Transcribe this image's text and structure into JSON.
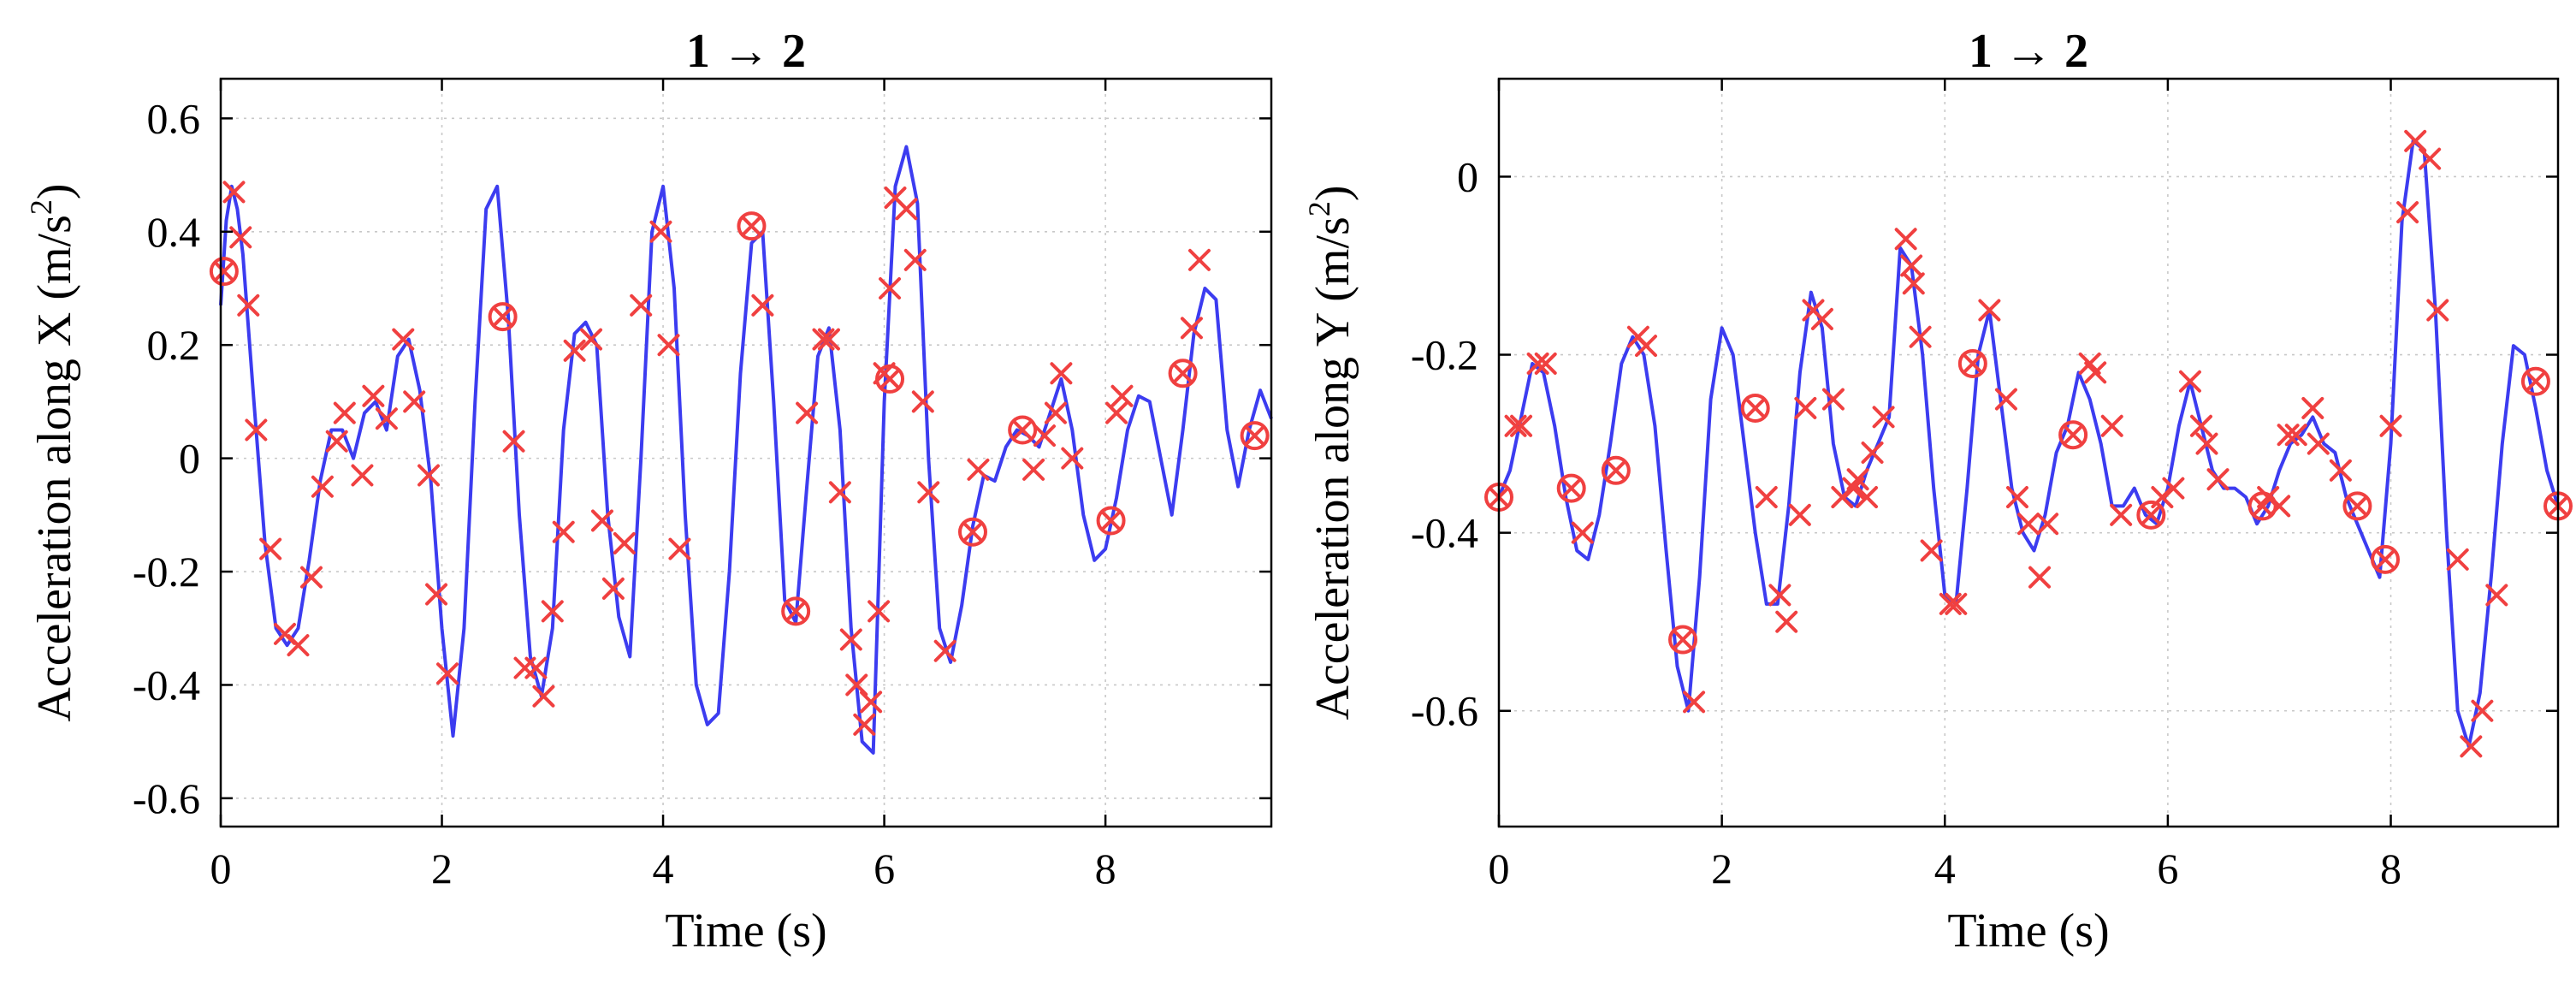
{
  "chart_data": [
    {
      "type": "line",
      "title": "1 → 2",
      "xlabel": "Time (s)",
      "ylabel": "Acceleration along X (m/s",
      "ylabel_sup": "2",
      "ylabel_close": ")",
      "xlim": [
        0,
        9.5
      ],
      "ylim": [
        -0.65,
        0.67
      ],
      "xticks": [
        0,
        2,
        4,
        6,
        8
      ],
      "xtick_labels": [
        "0",
        "2",
        "4",
        "6",
        "8"
      ],
      "yticks": [
        -0.6,
        -0.4,
        -0.2,
        0,
        0.2,
        0.4,
        0.6
      ],
      "ytick_labels": [
        "-0.6",
        "-0.4",
        "-0.2",
        "0",
        "0.2",
        "0.4",
        "0.6"
      ],
      "grid": true,
      "series": [
        {
          "name": "acceleration",
          "color": "#3c3cf0",
          "x": [
            0,
            0.05,
            0.1,
            0.15,
            0.2,
            0.3,
            0.4,
            0.5,
            0.6,
            0.7,
            0.8,
            0.9,
            1.0,
            1.1,
            1.2,
            1.3,
            1.4,
            1.5,
            1.6,
            1.7,
            1.8,
            1.9,
            2.0,
            2.1,
            2.2,
            2.3,
            2.4,
            2.5,
            2.6,
            2.7,
            2.8,
            2.9,
            3.0,
            3.1,
            3.2,
            3.3,
            3.4,
            3.5,
            3.6,
            3.7,
            3.8,
            3.9,
            4.0,
            4.1,
            4.2,
            4.3,
            4.4,
            4.5,
            4.6,
            4.7,
            4.8,
            4.9,
            5.0,
            5.1,
            5.2,
            5.3,
            5.4,
            5.5,
            5.6,
            5.7,
            5.8,
            5.9,
            6.0,
            6.1,
            6.2,
            6.3,
            6.4,
            6.5,
            6.6,
            6.7,
            6.8,
            6.9,
            7.0,
            7.1,
            7.2,
            7.3,
            7.4,
            7.5,
            7.6,
            7.7,
            7.8,
            7.9,
            8.0,
            8.1,
            8.2,
            8.3,
            8.4,
            8.5,
            8.6,
            8.7,
            8.8,
            8.9,
            9.0,
            9.1,
            9.2,
            9.3,
            9.4,
            9.5
          ],
          "y": [
            0.27,
            0.42,
            0.48,
            0.44,
            0.36,
            0.1,
            -0.15,
            -0.3,
            -0.33,
            -0.3,
            -0.18,
            -0.04,
            0.05,
            0.05,
            0.0,
            0.08,
            0.1,
            0.05,
            0.18,
            0.21,
            0.12,
            -0.04,
            -0.3,
            -0.49,
            -0.3,
            0.1,
            0.44,
            0.48,
            0.25,
            -0.1,
            -0.35,
            -0.42,
            -0.3,
            0.05,
            0.22,
            0.24,
            0.2,
            -0.1,
            -0.28,
            -0.35,
            0.0,
            0.4,
            0.48,
            0.3,
            -0.1,
            -0.4,
            -0.47,
            -0.45,
            -0.2,
            0.15,
            0.38,
            0.4,
            0.1,
            -0.25,
            -0.29,
            -0.05,
            0.18,
            0.23,
            0.05,
            -0.3,
            -0.5,
            -0.52,
            0.1,
            0.48,
            0.55,
            0.45,
            0.0,
            -0.3,
            -0.36,
            -0.26,
            -0.12,
            -0.03,
            -0.04,
            0.02,
            0.05,
            0.04,
            0.02,
            0.08,
            0.14,
            0.05,
            -0.1,
            -0.18,
            -0.16,
            -0.07,
            0.05,
            0.11,
            0.1,
            0.0,
            -0.1,
            0.05,
            0.22,
            0.3,
            0.28,
            0.05,
            -0.05,
            0.05,
            0.12,
            0.07
          ]
        }
      ],
      "x_markers": [
        {
          "x": 0.12,
          "y": 0.47
        },
        {
          "x": 0.18,
          "y": 0.39
        },
        {
          "x": 0.25,
          "y": 0.27
        },
        {
          "x": 0.32,
          "y": 0.05
        },
        {
          "x": 0.45,
          "y": -0.16
        },
        {
          "x": 0.58,
          "y": -0.31
        },
        {
          "x": 0.7,
          "y": -0.33
        },
        {
          "x": 0.82,
          "y": -0.21
        },
        {
          "x": 0.92,
          "y": -0.05
        },
        {
          "x": 1.05,
          "y": 0.03
        },
        {
          "x": 1.12,
          "y": 0.08
        },
        {
          "x": 1.28,
          "y": -0.03
        },
        {
          "x": 1.38,
          "y": 0.11
        },
        {
          "x": 1.5,
          "y": 0.07
        },
        {
          "x": 1.65,
          "y": 0.21
        },
        {
          "x": 1.75,
          "y": 0.1
        },
        {
          "x": 1.88,
          "y": -0.03
        },
        {
          "x": 1.95,
          "y": -0.24
        },
        {
          "x": 2.05,
          "y": -0.38
        },
        {
          "x": 2.65,
          "y": 0.03
        },
        {
          "x": 2.75,
          "y": -0.37
        },
        {
          "x": 2.85,
          "y": -0.37
        },
        {
          "x": 2.92,
          "y": -0.42
        },
        {
          "x": 3.0,
          "y": -0.27
        },
        {
          "x": 3.1,
          "y": -0.13
        },
        {
          "x": 3.2,
          "y": 0.19
        },
        {
          "x": 3.35,
          "y": 0.21
        },
        {
          "x": 3.45,
          "y": -0.11
        },
        {
          "x": 3.55,
          "y": -0.23
        },
        {
          "x": 3.65,
          "y": -0.15
        },
        {
          "x": 3.8,
          "y": 0.27
        },
        {
          "x": 3.98,
          "y": 0.4
        },
        {
          "x": 4.05,
          "y": 0.2
        },
        {
          "x": 4.15,
          "y": -0.16
        },
        {
          "x": 4.9,
          "y": 0.27
        },
        {
          "x": 5.3,
          "y": 0.08
        },
        {
          "x": 5.45,
          "y": 0.21
        },
        {
          "x": 5.5,
          "y": 0.21
        },
        {
          "x": 5.6,
          "y": -0.06
        },
        {
          "x": 5.7,
          "y": -0.32
        },
        {
          "x": 5.75,
          "y": -0.4
        },
        {
          "x": 5.82,
          "y": -0.47
        },
        {
          "x": 5.88,
          "y": -0.43
        },
        {
          "x": 5.95,
          "y": -0.27
        },
        {
          "x": 6.0,
          "y": 0.15
        },
        {
          "x": 6.05,
          "y": 0.3
        },
        {
          "x": 6.1,
          "y": 0.46
        },
        {
          "x": 6.2,
          "y": 0.44
        },
        {
          "x": 6.28,
          "y": 0.35
        },
        {
          "x": 6.35,
          "y": 0.1
        },
        {
          "x": 6.4,
          "y": -0.06
        },
        {
          "x": 6.55,
          "y": -0.34
        },
        {
          "x": 6.85,
          "y": -0.02
        },
        {
          "x": 7.35,
          "y": -0.02
        },
        {
          "x": 7.45,
          "y": 0.04
        },
        {
          "x": 7.55,
          "y": 0.08
        },
        {
          "x": 7.6,
          "y": 0.15
        },
        {
          "x": 7.7,
          "y": 0.0
        },
        {
          "x": 8.1,
          "y": 0.08
        },
        {
          "x": 8.15,
          "y": 0.11
        },
        {
          "x": 8.78,
          "y": 0.23
        },
        {
          "x": 8.85,
          "y": 0.35
        }
      ],
      "o_markers": [
        {
          "x": 0.03,
          "y": 0.33
        },
        {
          "x": 2.55,
          "y": 0.25
        },
        {
          "x": 4.8,
          "y": 0.41
        },
        {
          "x": 5.2,
          "y": -0.27
        },
        {
          "x": 6.05,
          "y": 0.14
        },
        {
          "x": 6.8,
          "y": -0.13
        },
        {
          "x": 7.25,
          "y": 0.05
        },
        {
          "x": 8.05,
          "y": -0.11
        },
        {
          "x": 8.7,
          "y": 0.15
        },
        {
          "x": 9.35,
          "y": 0.04
        }
      ]
    },
    {
      "type": "line",
      "title": "1 → 2",
      "xlabel": "Time (s)",
      "ylabel": "Acceleration along Y (m/s",
      "ylabel_sup": "2",
      "ylabel_close": ")",
      "xlim": [
        0,
        9.5
      ],
      "ylim": [
        -0.73,
        0.11
      ],
      "xticks": [
        0,
        2,
        4,
        6,
        8
      ],
      "xtick_labels": [
        "0",
        "2",
        "4",
        "6",
        "8"
      ],
      "yticks": [
        -0.6,
        -0.4,
        -0.2,
        0
      ],
      "ytick_labels": [
        "-0.6",
        "-0.4",
        "-0.2",
        "0"
      ],
      "grid": true,
      "series": [
        {
          "name": "acceleration",
          "color": "#3c3cf0",
          "x": [
            0,
            0.1,
            0.2,
            0.3,
            0.4,
            0.5,
            0.6,
            0.7,
            0.8,
            0.9,
            1.0,
            1.1,
            1.2,
            1.3,
            1.4,
            1.5,
            1.6,
            1.7,
            1.8,
            1.9,
            2.0,
            2.1,
            2.2,
            2.3,
            2.4,
            2.5,
            2.6,
            2.7,
            2.8,
            2.9,
            3.0,
            3.1,
            3.2,
            3.3,
            3.4,
            3.5,
            3.6,
            3.7,
            3.8,
            3.9,
            4.0,
            4.1,
            4.2,
            4.3,
            4.4,
            4.5,
            4.6,
            4.7,
            4.8,
            4.9,
            5.0,
            5.1,
            5.2,
            5.3,
            5.4,
            5.5,
            5.6,
            5.7,
            5.8,
            5.9,
            6.0,
            6.1,
            6.2,
            6.3,
            6.4,
            6.5,
            6.6,
            6.7,
            6.8,
            6.9,
            7.0,
            7.1,
            7.2,
            7.3,
            7.4,
            7.5,
            7.6,
            7.7,
            7.8,
            7.9,
            8.0,
            8.1,
            8.2,
            8.3,
            8.4,
            8.5,
            8.6,
            8.7,
            8.8,
            8.9,
            9.0,
            9.1,
            9.2,
            9.3,
            9.4,
            9.5
          ],
          "y": [
            -0.36,
            -0.33,
            -0.27,
            -0.21,
            -0.22,
            -0.28,
            -0.36,
            -0.42,
            -0.43,
            -0.38,
            -0.3,
            -0.21,
            -0.18,
            -0.2,
            -0.28,
            -0.42,
            -0.55,
            -0.6,
            -0.45,
            -0.25,
            -0.17,
            -0.2,
            -0.3,
            -0.4,
            -0.48,
            -0.48,
            -0.37,
            -0.22,
            -0.13,
            -0.17,
            -0.3,
            -0.36,
            -0.37,
            -0.33,
            -0.3,
            -0.27,
            -0.08,
            -0.1,
            -0.2,
            -0.35,
            -0.47,
            -0.48,
            -0.35,
            -0.2,
            -0.15,
            -0.25,
            -0.35,
            -0.4,
            -0.42,
            -0.38,
            -0.31,
            -0.28,
            -0.22,
            -0.25,
            -0.3,
            -0.37,
            -0.37,
            -0.35,
            -0.38,
            -0.39,
            -0.35,
            -0.28,
            -0.23,
            -0.28,
            -0.33,
            -0.35,
            -0.35,
            -0.36,
            -0.39,
            -0.37,
            -0.33,
            -0.3,
            -0.29,
            -0.27,
            -0.3,
            -0.31,
            -0.36,
            -0.39,
            -0.42,
            -0.45,
            -0.3,
            -0.05,
            0.04,
            0.03,
            -0.15,
            -0.4,
            -0.6,
            -0.64,
            -0.58,
            -0.45,
            -0.3,
            -0.19,
            -0.2,
            -0.26,
            -0.33,
            -0.37
          ]
        }
      ],
      "x_markers": [
        {
          "x": 0.15,
          "y": -0.28
        },
        {
          "x": 0.2,
          "y": -0.28
        },
        {
          "x": 0.35,
          "y": -0.21
        },
        {
          "x": 0.42,
          "y": -0.21
        },
        {
          "x": 0.75,
          "y": -0.4
        },
        {
          "x": 1.25,
          "y": -0.18
        },
        {
          "x": 1.32,
          "y": -0.19
        },
        {
          "x": 1.75,
          "y": -0.59
        },
        {
          "x": 2.4,
          "y": -0.36
        },
        {
          "x": 2.52,
          "y": -0.47
        },
        {
          "x": 2.58,
          "y": -0.5
        },
        {
          "x": 2.7,
          "y": -0.38
        },
        {
          "x": 2.75,
          "y": -0.26
        },
        {
          "x": 2.82,
          "y": -0.15
        },
        {
          "x": 2.9,
          "y": -0.16
        },
        {
          "x": 3.0,
          "y": -0.25
        },
        {
          "x": 3.08,
          "y": -0.36
        },
        {
          "x": 3.18,
          "y": -0.35
        },
        {
          "x": 3.22,
          "y": -0.34
        },
        {
          "x": 3.3,
          "y": -0.36
        },
        {
          "x": 3.35,
          "y": -0.31
        },
        {
          "x": 3.45,
          "y": -0.27
        },
        {
          "x": 3.65,
          "y": -0.07
        },
        {
          "x": 3.7,
          "y": -0.1
        },
        {
          "x": 3.72,
          "y": -0.12
        },
        {
          "x": 3.78,
          "y": -0.18
        },
        {
          "x": 3.88,
          "y": -0.42
        },
        {
          "x": 4.05,
          "y": -0.48
        },
        {
          "x": 4.1,
          "y": -0.48
        },
        {
          "x": 4.4,
          "y": -0.15
        },
        {
          "x": 4.55,
          "y": -0.25
        },
        {
          "x": 4.65,
          "y": -0.36
        },
        {
          "x": 4.75,
          "y": -0.39
        },
        {
          "x": 4.85,
          "y": -0.45
        },
        {
          "x": 4.92,
          "y": -0.39
        },
        {
          "x": 5.3,
          "y": -0.21
        },
        {
          "x": 5.35,
          "y": -0.22
        },
        {
          "x": 5.5,
          "y": -0.28
        },
        {
          "x": 5.58,
          "y": -0.38
        },
        {
          "x": 5.95,
          "y": -0.36
        },
        {
          "x": 6.05,
          "y": -0.35
        },
        {
          "x": 6.2,
          "y": -0.23
        },
        {
          "x": 6.3,
          "y": -0.28
        },
        {
          "x": 6.35,
          "y": -0.3
        },
        {
          "x": 6.45,
          "y": -0.34
        },
        {
          "x": 6.9,
          "y": -0.36
        },
        {
          "x": 7.0,
          "y": -0.37
        },
        {
          "x": 7.08,
          "y": -0.29
        },
        {
          "x": 7.15,
          "y": -0.29
        },
        {
          "x": 7.3,
          "y": -0.26
        },
        {
          "x": 7.35,
          "y": -0.3
        },
        {
          "x": 7.55,
          "y": -0.33
        },
        {
          "x": 8.0,
          "y": -0.28
        },
        {
          "x": 8.15,
          "y": -0.04
        },
        {
          "x": 8.22,
          "y": 0.04
        },
        {
          "x": 8.35,
          "y": 0.02
        },
        {
          "x": 8.42,
          "y": -0.15
        },
        {
          "x": 8.6,
          "y": -0.43
        },
        {
          "x": 8.72,
          "y": -0.64
        },
        {
          "x": 8.82,
          "y": -0.6
        },
        {
          "x": 8.95,
          "y": -0.47
        }
      ],
      "o_markers": [
        {
          "x": 0.0,
          "y": -0.36
        },
        {
          "x": 0.65,
          "y": -0.35
        },
        {
          "x": 1.05,
          "y": -0.33
        },
        {
          "x": 1.65,
          "y": -0.52
        },
        {
          "x": 2.3,
          "y": -0.26
        },
        {
          "x": 4.25,
          "y": -0.21
        },
        {
          "x": 5.15,
          "y": -0.29
        },
        {
          "x": 5.85,
          "y": -0.38
        },
        {
          "x": 6.85,
          "y": -0.37
        },
        {
          "x": 7.7,
          "y": -0.37
        },
        {
          "x": 7.95,
          "y": -0.43
        },
        {
          "x": 9.3,
          "y": -0.23
        },
        {
          "x": 9.5,
          "y": -0.37
        }
      ]
    }
  ]
}
